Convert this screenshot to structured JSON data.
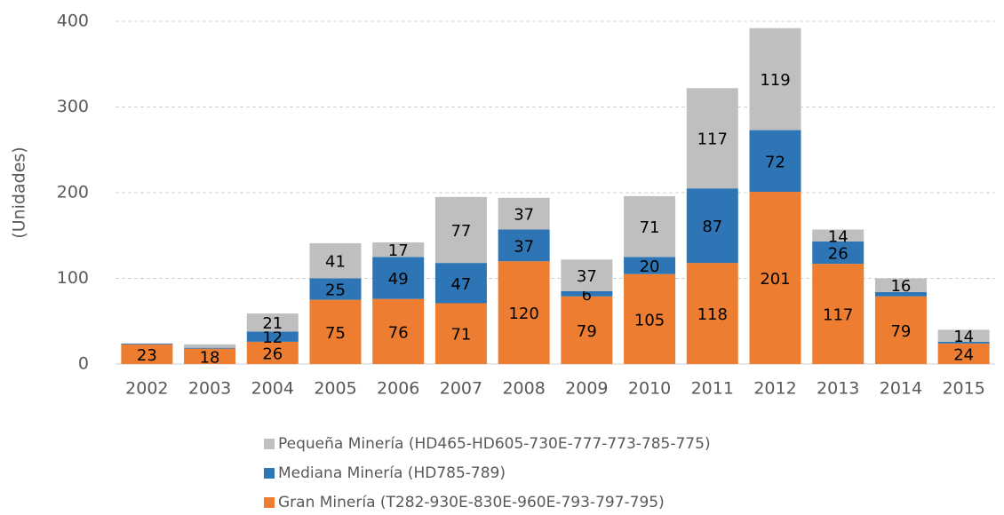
{
  "chart_data": {
    "type": "bar",
    "stacked": true,
    "y_label": "(Unidades)",
    "categories": [
      "2002",
      "2003",
      "2004",
      "2005",
      "2006",
      "2007",
      "2008",
      "2009",
      "2010",
      "2011",
      "2012",
      "2013",
      "2014",
      "2015"
    ],
    "series": [
      {
        "name": "Gran Minería (T282-930E-830E-960E-793-797-795)",
        "color": "#ed7d31",
        "values": [
          23,
          18,
          26,
          75,
          76,
          71,
          120,
          79,
          105,
          118,
          201,
          117,
          79,
          24
        ],
        "value_labels": [
          "23",
          "18",
          "26",
          "75",
          "76",
          "71",
          "120",
          "79",
          "105",
          "118",
          "201",
          "117",
          "79",
          "24"
        ]
      },
      {
        "name": "Mediana Minería (HD785-789)",
        "color": "#2e75b6",
        "values": [
          1,
          1,
          12,
          25,
          49,
          47,
          37,
          6,
          20,
          87,
          72,
          26,
          5,
          2
        ],
        "value_labels": [
          null,
          null,
          "12",
          "25",
          "49",
          "47",
          "37",
          "6",
          "20",
          "87",
          "72",
          "26",
          null,
          null
        ]
      },
      {
        "name": "Pequeña Minería (HD465-HD605-730E-777-773-785-775)",
        "color": "#bfbfbf",
        "values": [
          0,
          4,
          21,
          41,
          17,
          77,
          37,
          37,
          71,
          117,
          119,
          14,
          16,
          14
        ],
        "value_labels": [
          null,
          null,
          "21",
          "41",
          "17",
          "77",
          "37",
          "37",
          "71",
          "117",
          "119",
          "14",
          "16",
          "14"
        ]
      }
    ],
    "ylim": [
      0,
      400
    ],
    "yticks": [
      0,
      100,
      200,
      300,
      400
    ],
    "grid": true
  }
}
